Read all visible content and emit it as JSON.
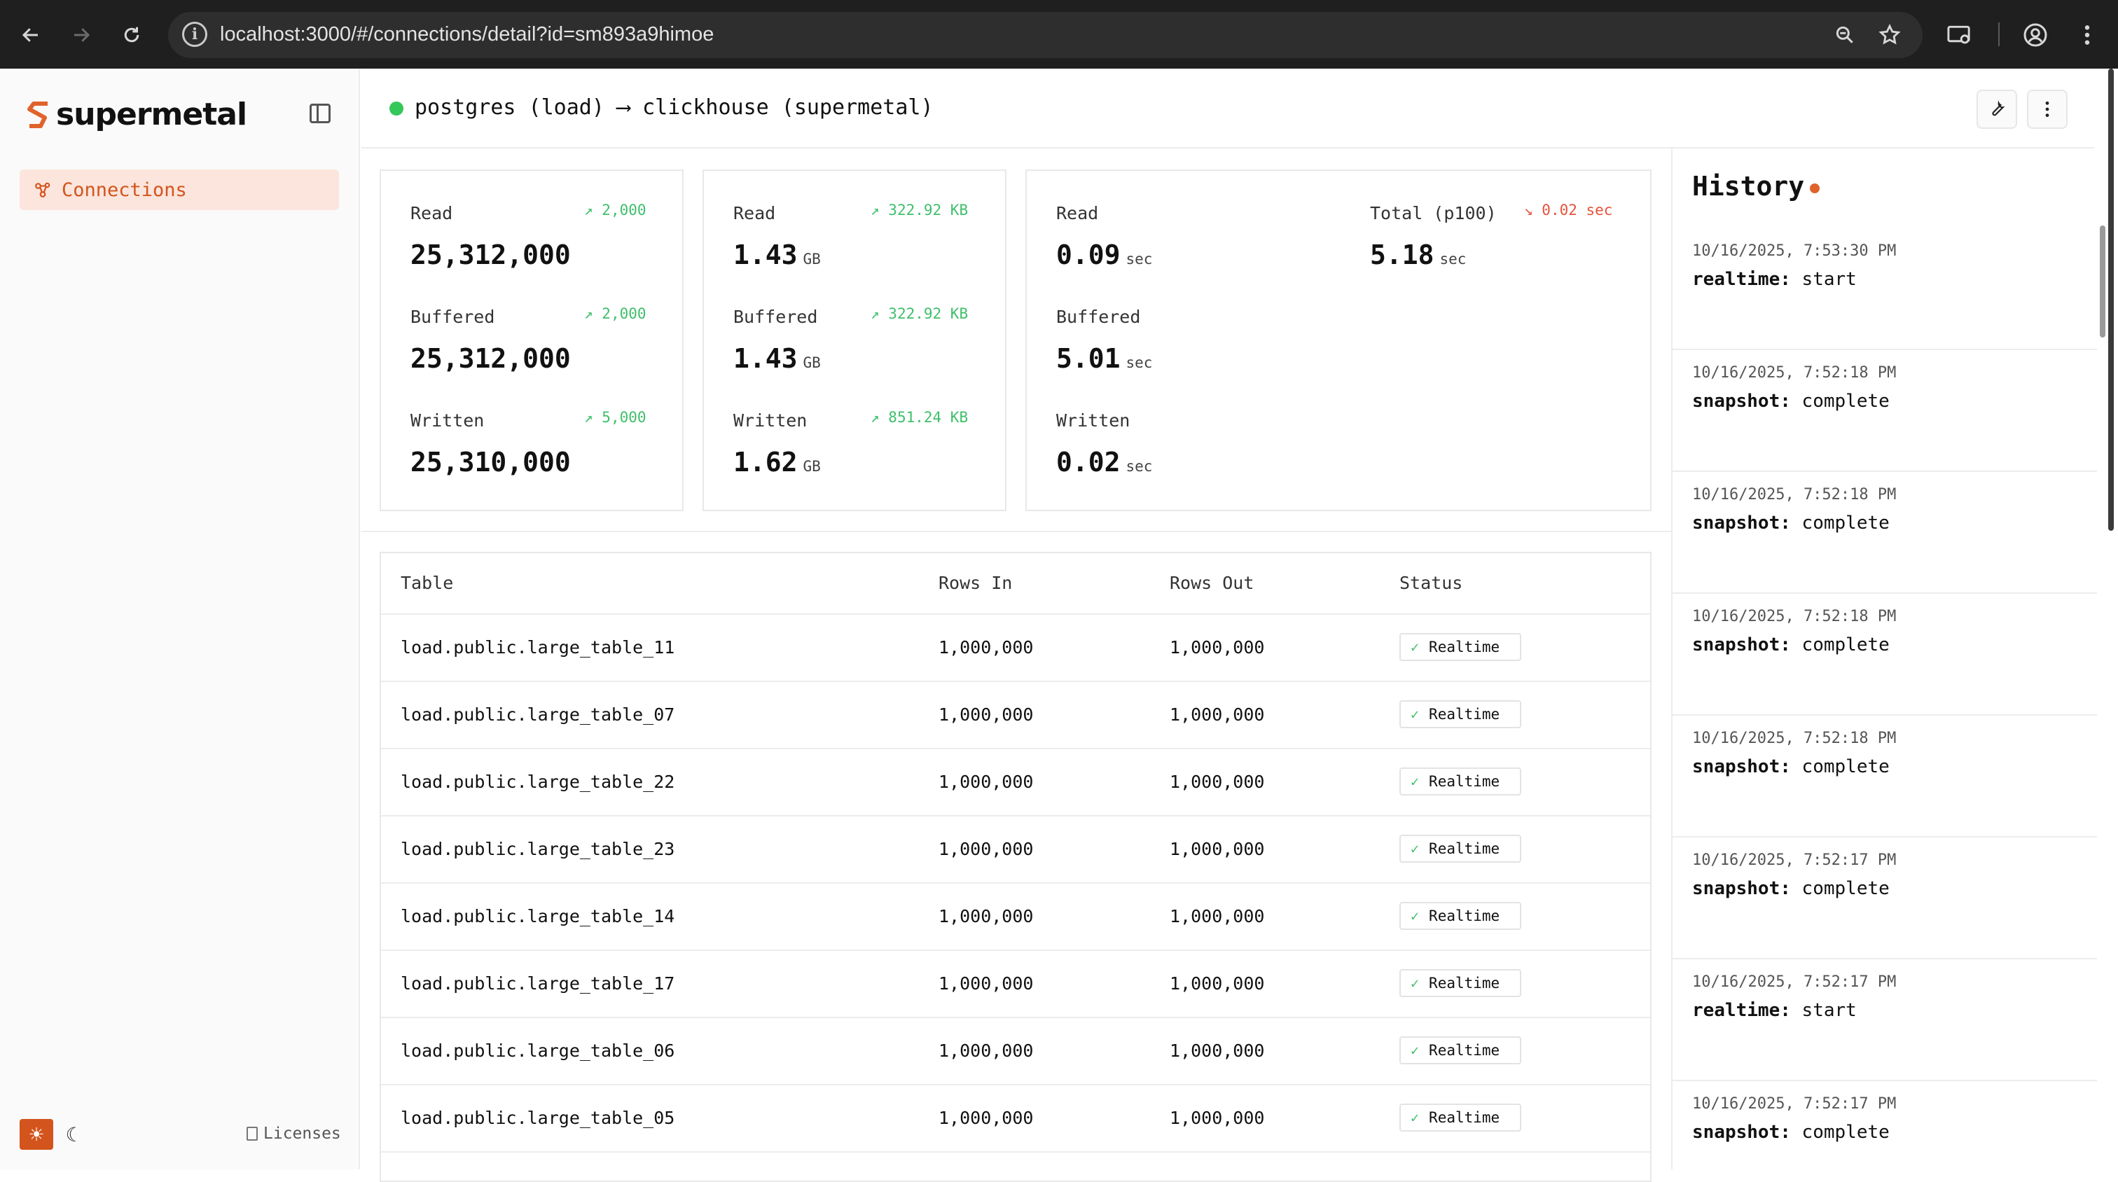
{
  "browser": {
    "url": "localhost:3000/#/connections/detail?id=sm893a9himoe"
  },
  "sidebar": {
    "logo_text": "supermetal",
    "items": [
      {
        "label": "Connections",
        "icon": "connections-icon",
        "active": true
      }
    ],
    "footer": {
      "licenses_label": "Licenses"
    }
  },
  "header": {
    "title": "postgres (load) ⟶ clickhouse (supermetal)",
    "status_color": "#34c759"
  },
  "metrics": {
    "rows": {
      "read": {
        "label": "Read",
        "value": "25,312,000",
        "delta": "2,000"
      },
      "buffered": {
        "label": "Buffered",
        "value": "25,312,000",
        "delta": "2,000"
      },
      "written": {
        "label": "Written",
        "value": "25,310,000",
        "delta": "5,000"
      }
    },
    "bytes": {
      "read": {
        "label": "Read",
        "value": "1.43",
        "unit": "GB",
        "delta": "322.92 KB"
      },
      "buffered": {
        "label": "Buffered",
        "value": "1.43",
        "unit": "GB",
        "delta": "322.92 KB"
      },
      "written": {
        "label": "Written",
        "value": "1.62",
        "unit": "GB",
        "delta": "851.24 KB"
      }
    },
    "latency": {
      "read": {
        "label": "Read",
        "value": "0.09",
        "unit": "sec"
      },
      "buffered": {
        "label": "Buffered",
        "value": "5.01",
        "unit": "sec"
      },
      "written": {
        "label": "Written",
        "value": "0.02",
        "unit": "sec"
      },
      "total": {
        "label": "Total (p100)",
        "value": "5.18",
        "unit": "sec",
        "delta": "0.02 sec"
      }
    }
  },
  "table": {
    "headers": [
      "Table",
      "Rows In",
      "Rows Out",
      "Status"
    ],
    "rows": [
      {
        "name": "load.public.large_table_11",
        "rows_in": "1,000,000",
        "rows_out": "1,000,000",
        "status": "Realtime"
      },
      {
        "name": "load.public.large_table_07",
        "rows_in": "1,000,000",
        "rows_out": "1,000,000",
        "status": "Realtime"
      },
      {
        "name": "load.public.large_table_22",
        "rows_in": "1,000,000",
        "rows_out": "1,000,000",
        "status": "Realtime"
      },
      {
        "name": "load.public.large_table_23",
        "rows_in": "1,000,000",
        "rows_out": "1,000,000",
        "status": "Realtime"
      },
      {
        "name": "load.public.large_table_14",
        "rows_in": "1,000,000",
        "rows_out": "1,000,000",
        "status": "Realtime"
      },
      {
        "name": "load.public.large_table_17",
        "rows_in": "1,000,000",
        "rows_out": "1,000,000",
        "status": "Realtime"
      },
      {
        "name": "load.public.large_table_06",
        "rows_in": "1,000,000",
        "rows_out": "1,000,000",
        "status": "Realtime"
      },
      {
        "name": "load.public.large_table_05",
        "rows_in": "1,000,000",
        "rows_out": "1,000,000",
        "status": "Realtime"
      }
    ]
  },
  "history": {
    "title": "History",
    "items": [
      {
        "time": "10/16/2025, 7:53:30 PM",
        "key": "realtime:",
        "value": "start"
      },
      {
        "time": "10/16/2025, 7:52:18 PM",
        "key": "snapshot:",
        "value": "complete"
      },
      {
        "time": "10/16/2025, 7:52:18 PM",
        "key": "snapshot:",
        "value": "complete"
      },
      {
        "time": "10/16/2025, 7:52:18 PM",
        "key": "snapshot:",
        "value": "complete"
      },
      {
        "time": "10/16/2025, 7:52:18 PM",
        "key": "snapshot:",
        "value": "complete"
      },
      {
        "time": "10/16/2025, 7:52:17 PM",
        "key": "snapshot:",
        "value": "complete"
      },
      {
        "time": "10/16/2025, 7:52:17 PM",
        "key": "realtime:",
        "value": "start"
      },
      {
        "time": "10/16/2025, 7:52:17 PM",
        "key": "snapshot:",
        "value": "complete"
      }
    ]
  },
  "colors": {
    "accent": "#d4541d",
    "positive": "#3fbf6b",
    "negative": "#e5533d"
  }
}
